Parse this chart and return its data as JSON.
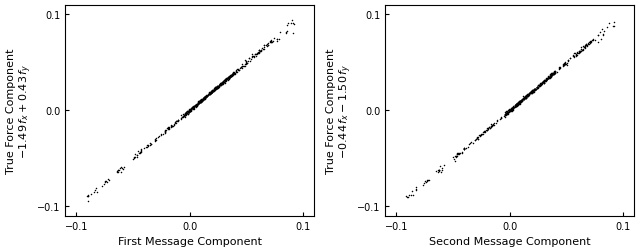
{
  "plot1": {
    "xlabel": "First Message Component",
    "ylabel1": "True Force Component",
    "ylabel2": "$-1.49\\, f_x + 0.43\\, f_y$",
    "xlim": [
      -0.11,
      0.11
    ],
    "ylim": [
      -0.11,
      0.11
    ],
    "xticks": [
      -0.1,
      0.0,
      0.1
    ],
    "yticks": [
      -0.1,
      0.0,
      0.1
    ],
    "slope": 1.0,
    "seed": 42
  },
  "plot2": {
    "xlabel": "Second Message Component",
    "ylabel1": "True Force Component",
    "ylabel2": "$-0.44\\, f_x - 1.50\\, f_y$",
    "xlim": [
      -0.11,
      0.11
    ],
    "ylim": [
      -0.11,
      0.11
    ],
    "xticks": [
      -0.1,
      0.0,
      0.1
    ],
    "yticks": [
      -0.1,
      0.0,
      0.1
    ],
    "slope": 1.0,
    "seed": 77
  },
  "marker_size": 1.2,
  "marker_color": "black",
  "background_color": "#ffffff",
  "tick_labelsize": 7,
  "label_fontsize": 8
}
